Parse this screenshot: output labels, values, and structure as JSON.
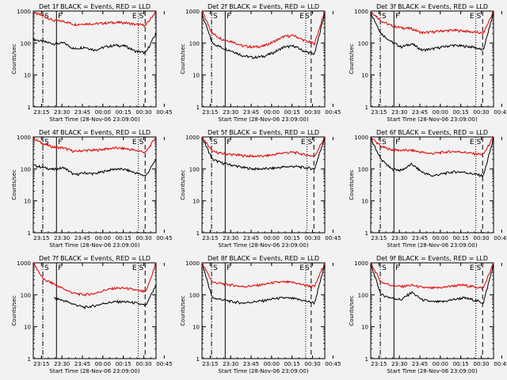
{
  "colors": {
    "background": "#f2f2f2",
    "events": "#000000",
    "lld": "#e00000",
    "axes": "#000000"
  },
  "common": {
    "xlabel": "Start Time (28-Nov-06 23:09:00)",
    "ylabel": "Counts/sec",
    "x_tick_labels": [
      "23:15",
      "23:30",
      "23:45",
      "00:00",
      "00:15",
      "00:30",
      "00:45"
    ],
    "y_tick_labels": [
      "1",
      "10",
      "100",
      "1000"
    ],
    "markers": [
      {
        "label": "S",
        "position": "left",
        "style": "dash-dot"
      },
      {
        "label": "F",
        "position": "left",
        "style": "solid"
      },
      {
        "label": "E",
        "position": "right",
        "style": "dotted"
      },
      {
        "label": "S",
        "position": "right",
        "style": "dashed"
      }
    ]
  },
  "chart_data": [
    {
      "type": "line",
      "title": "Det 1f BLACK = Events, RED = LLD",
      "ylim": [
        1,
        1000
      ],
      "yscale": "log",
      "series": [
        {
          "name": "Events",
          "profile": [
            130,
            110,
            95,
            100,
            65,
            75,
            60,
            75,
            85,
            80,
            55,
            50,
            200
          ]
        },
        {
          "name": "LLD",
          "profile": [
            900,
            700,
            500,
            480,
            380,
            400,
            400,
            420,
            440,
            430,
            380,
            360,
            1000
          ]
        }
      ],
      "markers_min": [
        7,
        17,
        77,
        82
      ]
    },
    {
      "type": "line",
      "title": "Det 2f BLACK = Events, RED = LLD",
      "ylim": [
        1,
        1000
      ],
      "yscale": "log",
      "series": [
        {
          "name": "Events",
          "profile": [
            800,
            100,
            70,
            55,
            40,
            35,
            38,
            50,
            75,
            80,
            55,
            45,
            900
          ]
        },
        {
          "name": "LLD",
          "profile": [
            1000,
            200,
            130,
            110,
            80,
            75,
            80,
            110,
            160,
            170,
            120,
            95,
            1000
          ]
        }
      ],
      "markers_min": [
        7,
        17,
        76,
        80
      ]
    },
    {
      "type": "line",
      "title": "Det 3f BLACK = Events, RED = LLD",
      "ylim": [
        1,
        1000
      ],
      "yscale": "log",
      "series": [
        {
          "name": "Events",
          "profile": [
            900,
            200,
            110,
            75,
            95,
            60,
            65,
            75,
            85,
            80,
            75,
            60,
            900
          ]
        },
        {
          "name": "LLD",
          "profile": [
            1000,
            500,
            350,
            300,
            280,
            210,
            220,
            240,
            250,
            240,
            220,
            200,
            1000
          ]
        }
      ],
      "markers_min": [
        7,
        17,
        77,
        82
      ]
    },
    {
      "type": "line",
      "title": "Det 4f BLACK = Events, RED = LLD",
      "ylim": [
        1,
        1000
      ],
      "yscale": "log",
      "series": [
        {
          "name": "Events",
          "profile": [
            130,
            110,
            95,
            110,
            65,
            75,
            70,
            85,
            100,
            95,
            75,
            60,
            200
          ]
        },
        {
          "name": "LLD",
          "profile": [
            900,
            600,
            480,
            450,
            350,
            380,
            380,
            420,
            450,
            430,
            380,
            330,
            1000
          ]
        }
      ],
      "markers_min": [
        7,
        17,
        77,
        82
      ]
    },
    {
      "type": "line",
      "title": "Det 5f BLACK = Events, RED = LLD",
      "ylim": [
        1,
        1000
      ],
      "yscale": "log",
      "series": [
        {
          "name": "Events",
          "profile": [
            1000,
            200,
            150,
            130,
            110,
            100,
            100,
            105,
            115,
            120,
            110,
            100,
            1000
          ]
        },
        {
          "name": "LLD",
          "profile": [
            1000,
            350,
            300,
            280,
            260,
            250,
            250,
            280,
            320,
            330,
            280,
            250,
            1000
          ]
        }
      ],
      "markers_min": [
        7,
        17,
        77,
        82
      ]
    },
    {
      "type": "line",
      "title": "Det 6f BLACK = Events, RED = LLD",
      "ylim": [
        1,
        1000
      ],
      "yscale": "log",
      "series": [
        {
          "name": "Events",
          "profile": [
            900,
            200,
            100,
            90,
            140,
            80,
            60,
            70,
            80,
            80,
            70,
            60,
            900
          ]
        },
        {
          "name": "LLD",
          "profile": [
            1000,
            500,
            400,
            380,
            380,
            330,
            300,
            330,
            350,
            340,
            300,
            280,
            1000
          ]
        }
      ],
      "markers_min": [
        7,
        17,
        77,
        82
      ]
    },
    {
      "type": "line",
      "title": "Det 7f BLACK = Events, RED = LLD",
      "ylim": [
        1,
        1000
      ],
      "yscale": "log",
      "series": [
        {
          "name": "Events",
          "profile": [
            null,
            null,
            80,
            65,
            50,
            40,
            45,
            55,
            60,
            60,
            55,
            45,
            200
          ]
        },
        {
          "name": "LLD",
          "profile": [
            1000,
            300,
            220,
            150,
            110,
            100,
            110,
            140,
            160,
            160,
            140,
            120,
            1000
          ]
        }
      ],
      "markers_min": [
        7,
        17,
        77,
        82
      ]
    },
    {
      "type": "line",
      "title": "Det 8f BLACK = Events, RED = LLD",
      "ylim": [
        1,
        1000
      ],
      "yscale": "log",
      "series": [
        {
          "name": "Events",
          "profile": [
            1000,
            80,
            70,
            60,
            55,
            60,
            65,
            75,
            80,
            75,
            65,
            55,
            900
          ]
        },
        {
          "name": "LLD",
          "profile": [
            1000,
            250,
            220,
            200,
            180,
            190,
            210,
            240,
            250,
            240,
            200,
            180,
            1000
          ]
        }
      ],
      "markers_min": [
        7,
        17,
        76,
        80
      ]
    },
    {
      "type": "line",
      "title": "Det 9f BLACK = Events, RED = LLD",
      "ylim": [
        1,
        1000
      ],
      "yscale": "log",
      "series": [
        {
          "name": "Events",
          "profile": [
            900,
            100,
            80,
            70,
            120,
            70,
            60,
            60,
            70,
            80,
            70,
            55,
            900
          ]
        },
        {
          "name": "LLD",
          "profile": [
            1000,
            250,
            200,
            180,
            200,
            170,
            160,
            170,
            190,
            200,
            180,
            160,
            1000
          ]
        }
      ],
      "markers_min": [
        7,
        17,
        77,
        82
      ]
    }
  ]
}
